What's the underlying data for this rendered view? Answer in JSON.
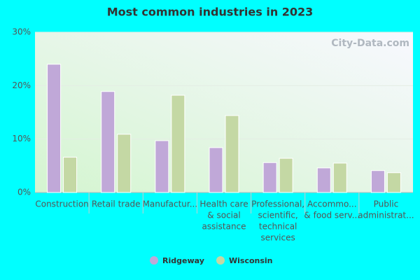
{
  "chart_data": {
    "type": "bar",
    "title": "Most common industries in 2023",
    "watermark": "City-Data.com",
    "categories": [
      [
        "Construction"
      ],
      [
        "Retail trade"
      ],
      [
        "Manufactur..."
      ],
      [
        "Health care",
        "& social",
        "assistance"
      ],
      [
        "Professional,",
        "scientific,",
        "technical",
        "services"
      ],
      [
        "Accommo...",
        "& food serv..."
      ],
      [
        "Public",
        "administrat..."
      ]
    ],
    "series": [
      {
        "name": "Ridgeway",
        "color": "#c0a8d8",
        "values": [
          24.0,
          18.9,
          9.7,
          8.4,
          5.6,
          4.6,
          4.1
        ]
      },
      {
        "name": "Wisconsin",
        "color": "#c4d8a4",
        "values": [
          6.6,
          10.9,
          18.2,
          14.4,
          6.4,
          5.5,
          3.7
        ]
      }
    ],
    "ylim": [
      0,
      30
    ],
    "yticks": [
      {
        "value": 0,
        "label": "0%"
      },
      {
        "value": 10,
        "label": "10%"
      },
      {
        "value": 20,
        "label": "20%"
      },
      {
        "value": 30,
        "label": "30%"
      }
    ],
    "grid": true,
    "legend": "bottom"
  }
}
